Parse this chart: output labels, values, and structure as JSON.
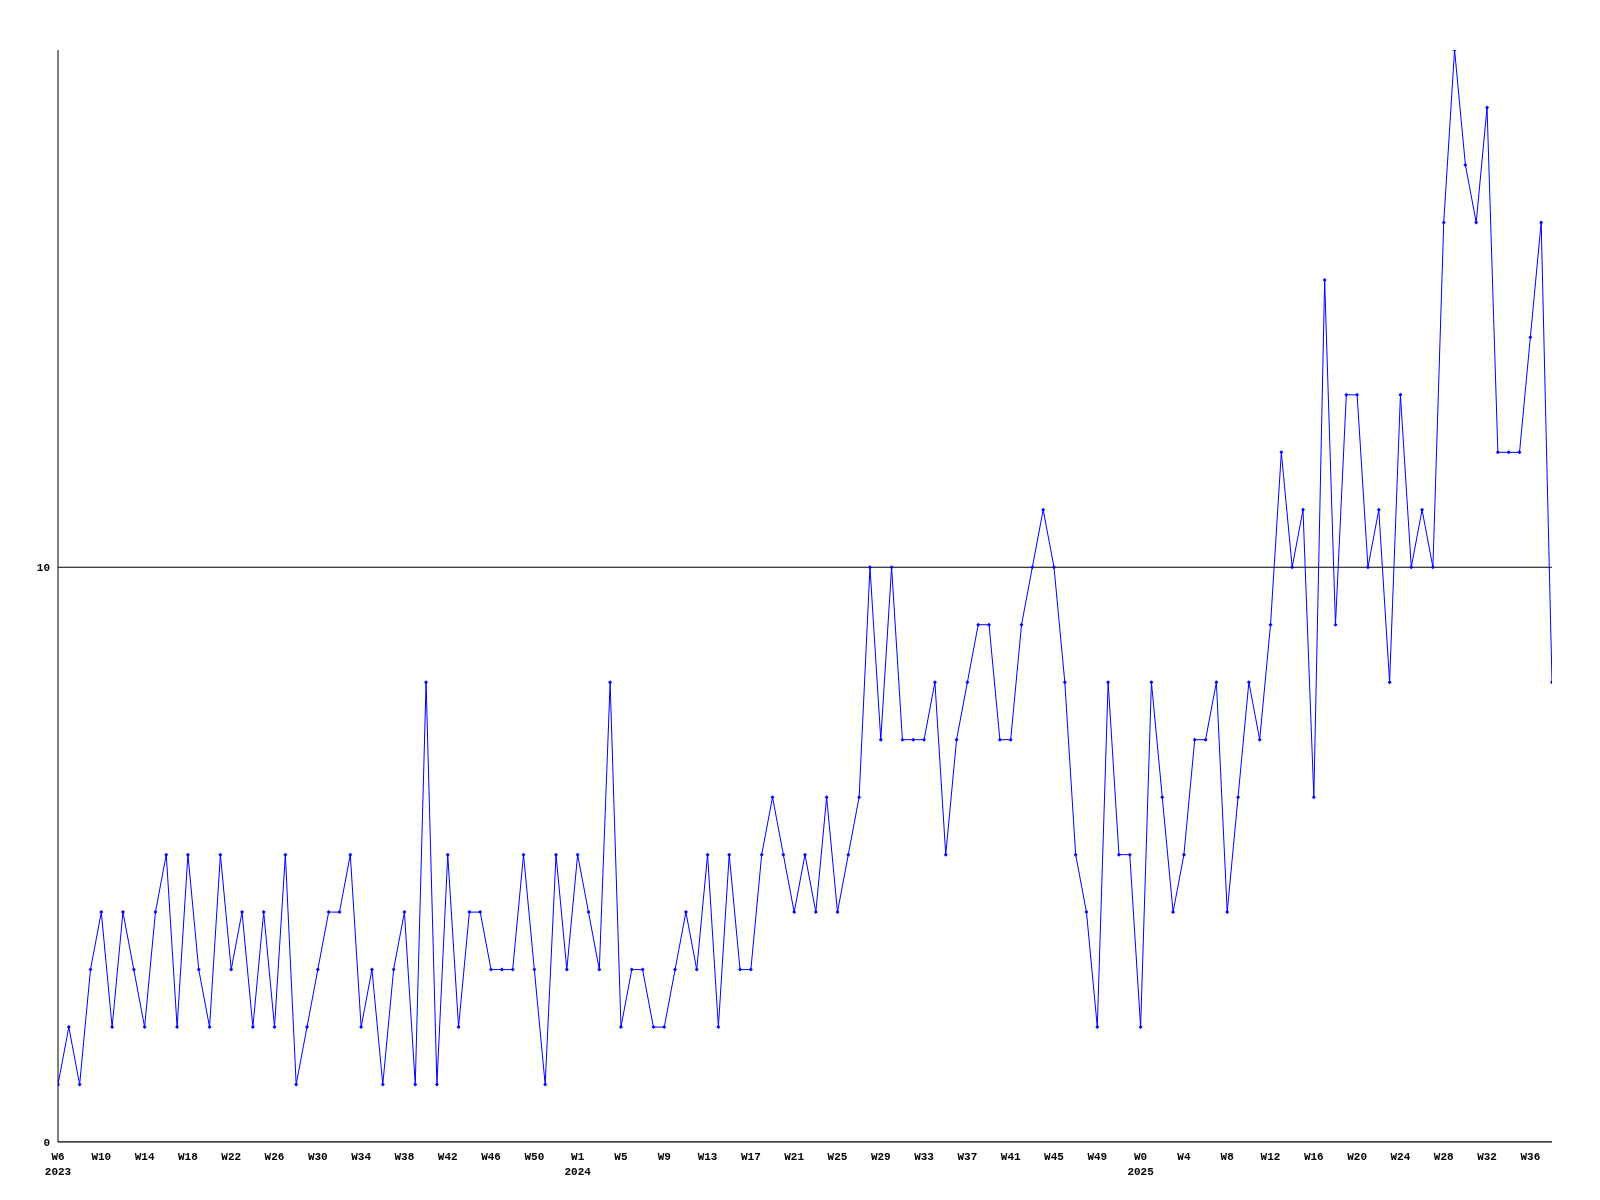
{
  "chart_data": {
    "type": "line",
    "categories": [
      "W6\n2023",
      null,
      null,
      null,
      "W10",
      null,
      null,
      null,
      "W14",
      null,
      null,
      null,
      "W18",
      null,
      null,
      null,
      "W22",
      null,
      null,
      null,
      "W26",
      null,
      null,
      null,
      "W30",
      null,
      null,
      null,
      "W34",
      null,
      null,
      null,
      "W38",
      null,
      null,
      null,
      "W42",
      null,
      null,
      null,
      "W46",
      null,
      null,
      null,
      "W50",
      null,
      null,
      null,
      "W1\n2024",
      null,
      null,
      null,
      "W5",
      null,
      null,
      null,
      "W9",
      null,
      null,
      null,
      "W13",
      null,
      null,
      null,
      "W17",
      null,
      null,
      null,
      "W21",
      null,
      null,
      null,
      "W25",
      null,
      null,
      null,
      "W29",
      null,
      null,
      null,
      "W33",
      null,
      null,
      null,
      "W37",
      null,
      null,
      null,
      "W41",
      null,
      null,
      null,
      "W45",
      null,
      null,
      null,
      "W49",
      null,
      null,
      null,
      "W0\n2025",
      null,
      null,
      null,
      "W4",
      null,
      null,
      null,
      "W8",
      null,
      null,
      null,
      "W12",
      null,
      null,
      null,
      "W16",
      null,
      null,
      null,
      "W20",
      null,
      null,
      null,
      "W24",
      null,
      null,
      null,
      "W28",
      null,
      null,
      null,
      "W32",
      null,
      null,
      null,
      "W36",
      null,
      null
    ],
    "series": [
      {
        "color": "#0000ff",
        "values": [
          1,
          2,
          1,
          3,
          4,
          2,
          4,
          3,
          2,
          4,
          5,
          2,
          5,
          3,
          2,
          5,
          3,
          4,
          2,
          4,
          2,
          5,
          1,
          2,
          3,
          4,
          4,
          5,
          2,
          3,
          1,
          3,
          4,
          1,
          8,
          1,
          5,
          2,
          4,
          4,
          3,
          3,
          3,
          5,
          3,
          1,
          5,
          3,
          5,
          4,
          3,
          8,
          2,
          3,
          3,
          2,
          2,
          3,
          4,
          3,
          5,
          2,
          5,
          3,
          3,
          5,
          6,
          5,
          4,
          5,
          4,
          6,
          4,
          5,
          6,
          10,
          7,
          10,
          7,
          7,
          7,
          8,
          5,
          7,
          8,
          9,
          9,
          7,
          7,
          9,
          10,
          11,
          10,
          8,
          5,
          4,
          2,
          8,
          5,
          5,
          2,
          8,
          6,
          4,
          5,
          7,
          7,
          8,
          4,
          6,
          8,
          7,
          9,
          12,
          10,
          11,
          6,
          15,
          9,
          13,
          13,
          10,
          11,
          8,
          13,
          10,
          11,
          10,
          16,
          19,
          17,
          16,
          18,
          12,
          12,
          12,
          14,
          16,
          8
        ]
      }
    ],
    "ylim": [
      0,
      19
    ],
    "yticks": [
      0,
      10
    ],
    "grid": "y",
    "marker": "diamond",
    "line_style": "solid"
  }
}
